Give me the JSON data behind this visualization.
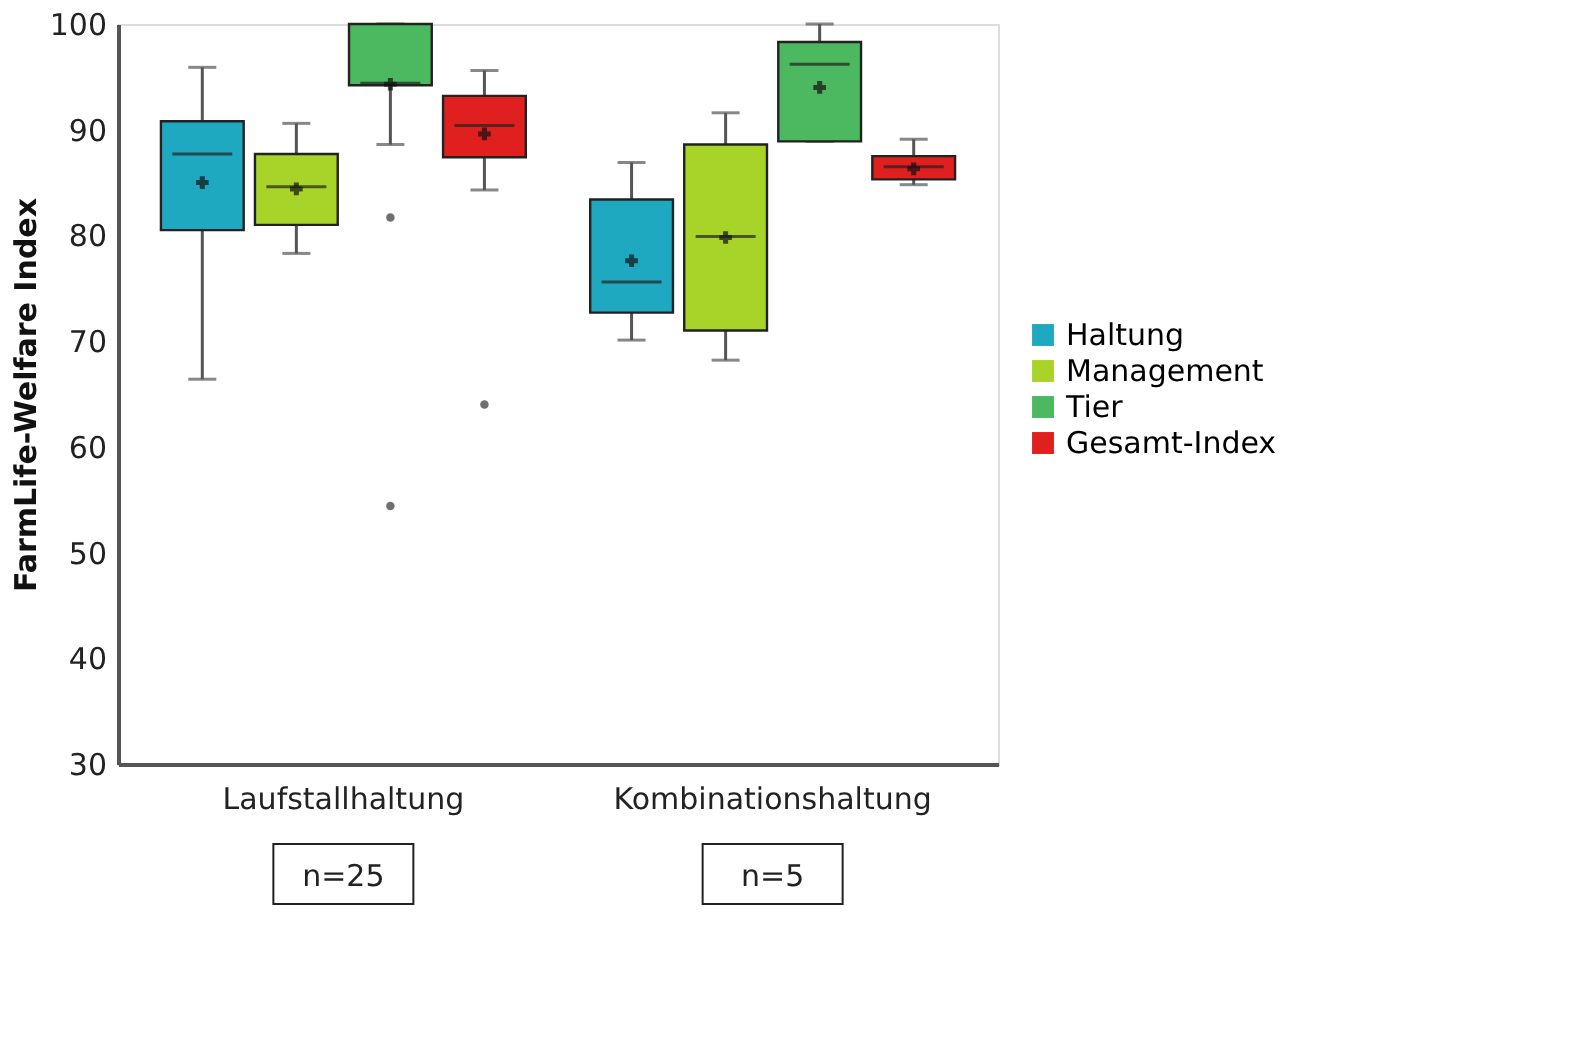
{
  "chart_data": {
    "type": "box",
    "ylabel": "FarmLife-Welfare Index",
    "categories": [
      "Laufstallhaltung",
      "Kombinationshaltung"
    ],
    "series": [
      {
        "name": "Haltung",
        "color": "#1fa9c0",
        "boxes": [
          {
            "low": 66.4,
            "q1": 80.5,
            "median": 87.7,
            "q3": 90.8,
            "high": 95.9,
            "mean": 85.0
          },
          {
            "low": 70.1,
            "q1": 72.7,
            "median": 75.6,
            "q3": 83.4,
            "high": 86.9,
            "mean": 77.6
          }
        ]
      },
      {
        "name": "Management",
        "color": "#a8d42a",
        "boxes": [
          {
            "low": 78.3,
            "q1": 81.0,
            "median": 84.6,
            "q3": 87.7,
            "high": 90.6,
            "mean": 84.4
          },
          {
            "low": 68.2,
            "q1": 71.0,
            "median": 79.9,
            "q3": 88.6,
            "high": 91.6,
            "mean": 79.8
          }
        ]
      },
      {
        "name": "Tier",
        "color": "#4cb860",
        "boxes": [
          {
            "low": 88.6,
            "q1": 94.2,
            "median": 94.4,
            "q3": 100,
            "high": 100,
            "mean": 94.3,
            "outliers": [
              81.7,
              54.4
            ]
          },
          {
            "low": 88.9,
            "q1": 88.9,
            "median": 96.2,
            "q3": 98.3,
            "high": 100,
            "mean": 94.0
          }
        ]
      },
      {
        "name": "Gesamt-Index",
        "color": "#e01f1f",
        "boxes": [
          {
            "low": 84.3,
            "q1": 87.4,
            "median": 90.4,
            "q3": 93.2,
            "high": 95.6,
            "mean": 89.6,
            "outliers": [
              64.0
            ]
          },
          {
            "low": 84.8,
            "q1": 85.3,
            "median": 86.5,
            "q3": 87.5,
            "high": 89.1,
            "mean": 86.3
          }
        ]
      }
    ],
    "ylim": [
      30,
      100
    ],
    "yticks": [
      30,
      40,
      50,
      60,
      70,
      80,
      90,
      100
    ],
    "grid": false,
    "legend": "right",
    "marker": "cross",
    "annotations": [
      "n=25",
      "n=5"
    ]
  }
}
